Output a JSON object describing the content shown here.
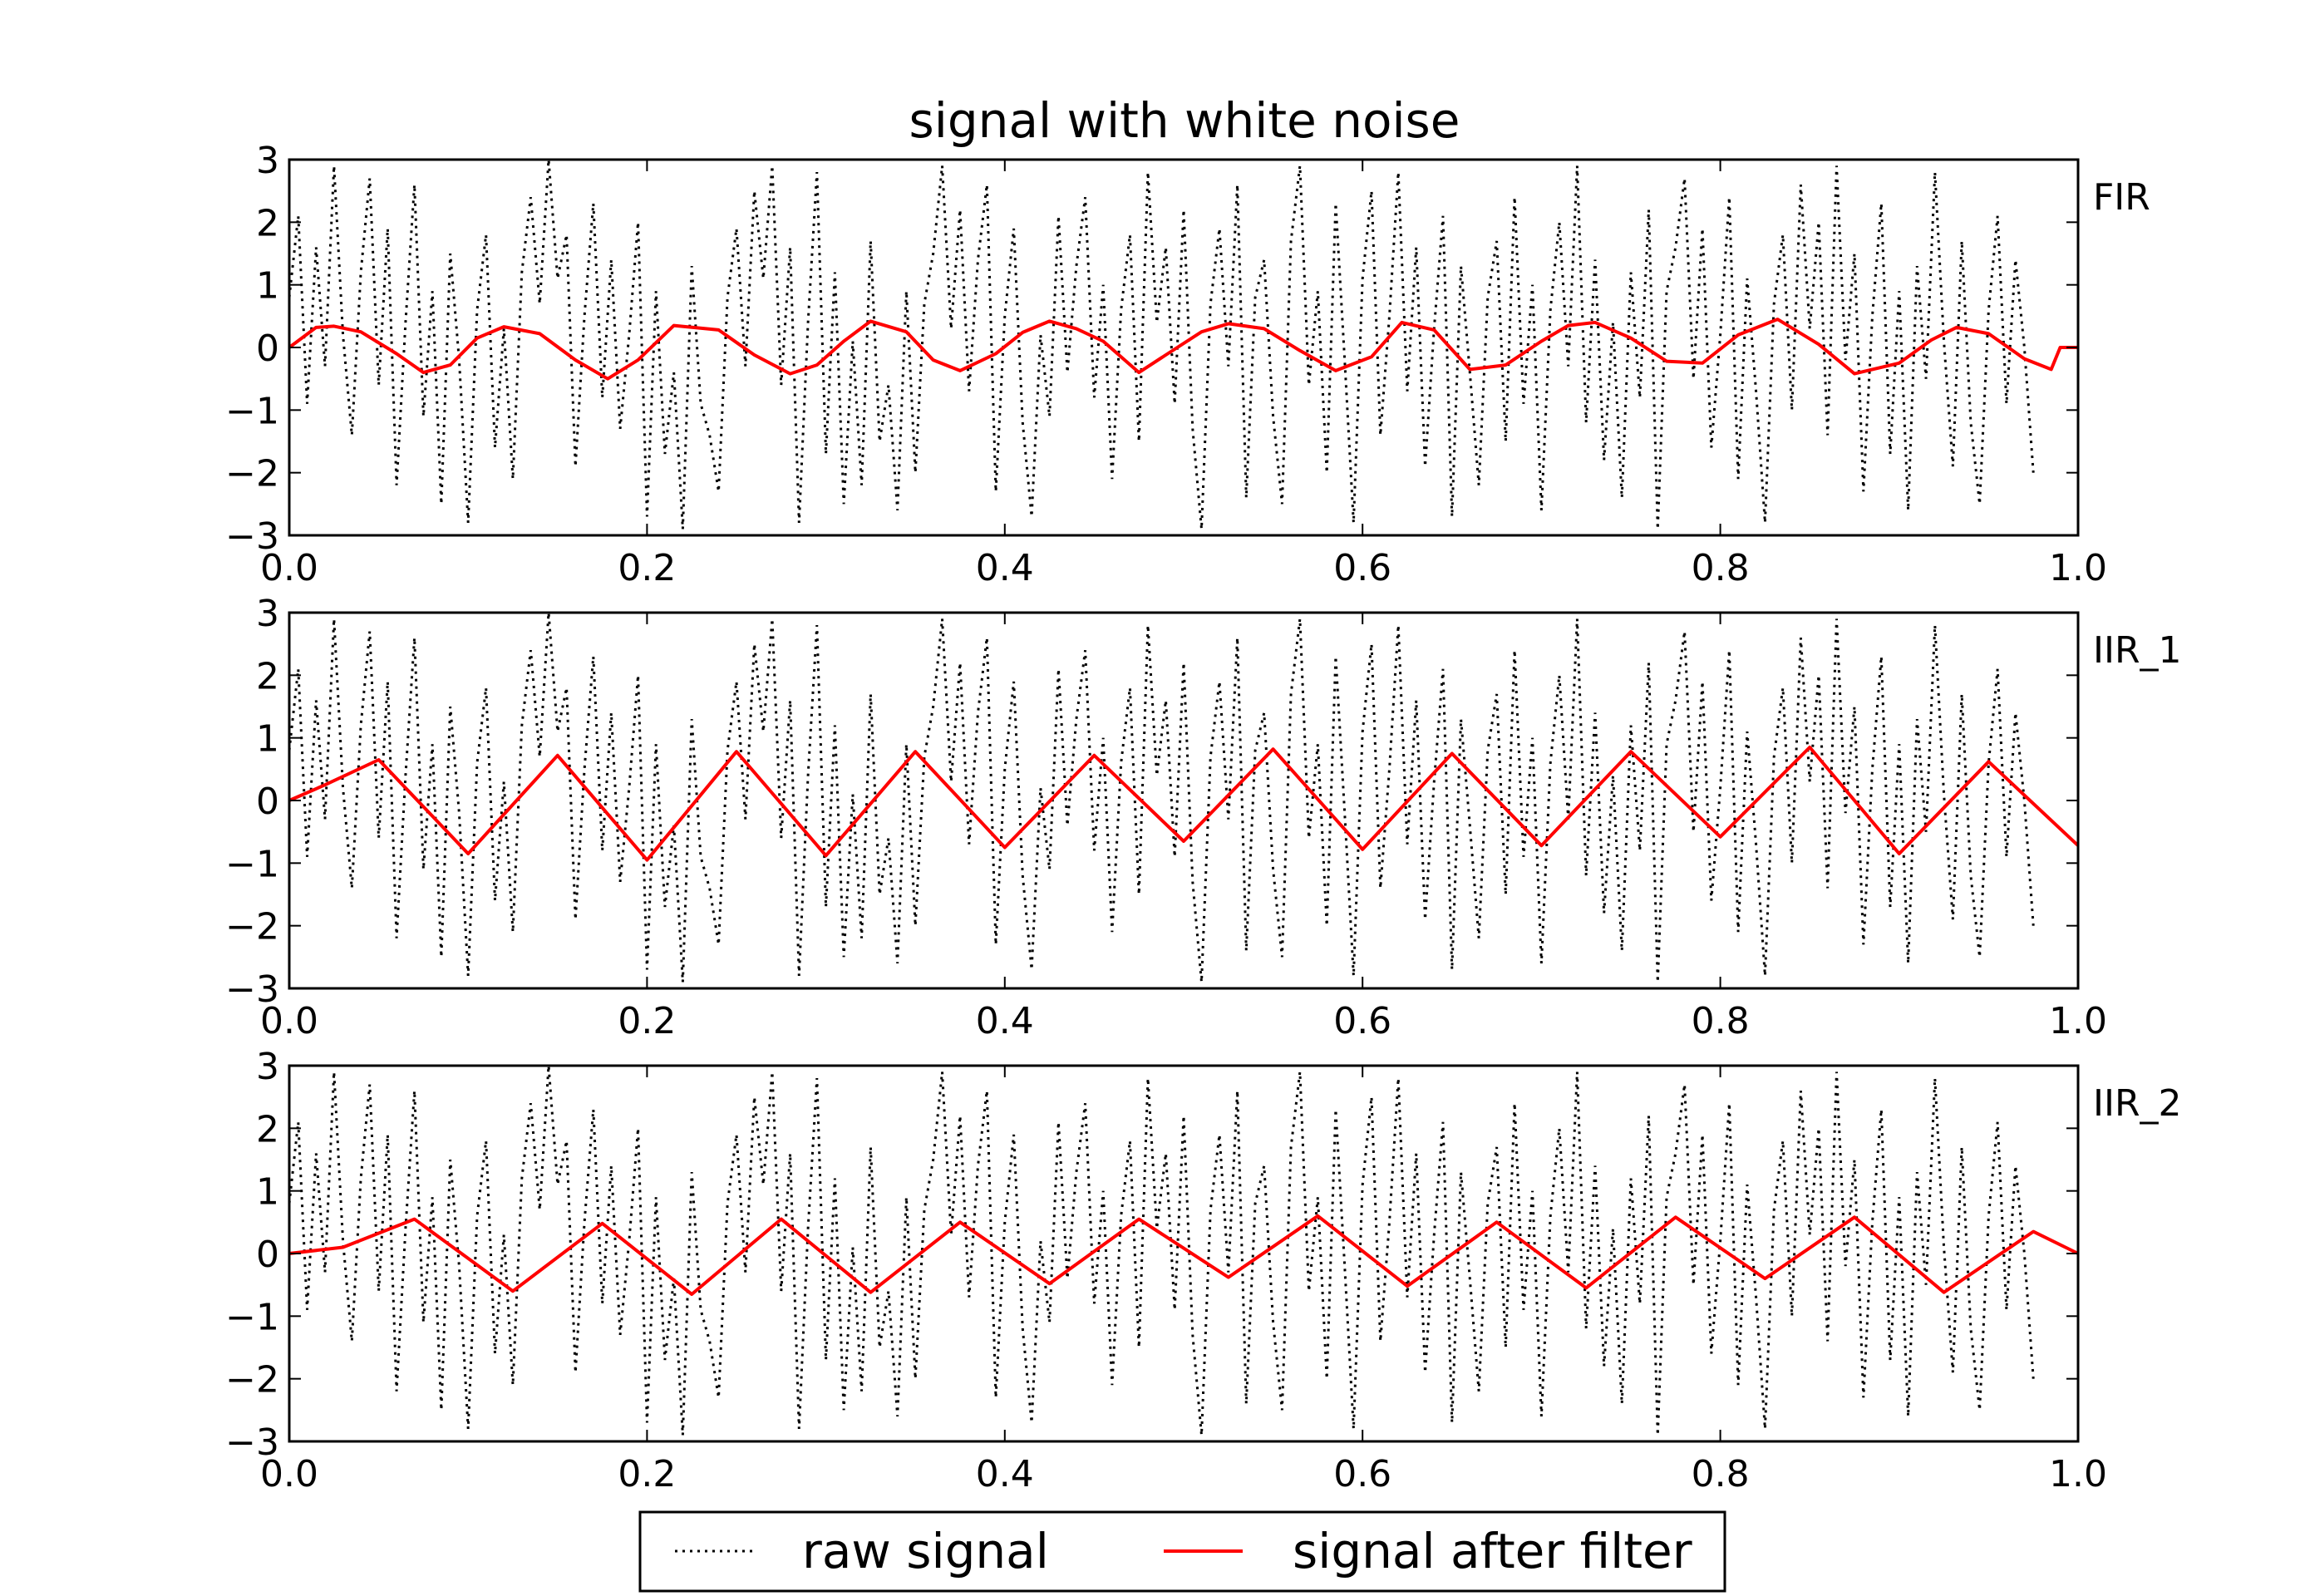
{
  "chart_data": {
    "type": "line",
    "title": "signal with white noise",
    "xlim": [
      0.0,
      1.0
    ],
    "ylim": [
      -3,
      3
    ],
    "x_ticks": [
      "0.0",
      "0.2",
      "0.4",
      "0.6",
      "0.8",
      "1.0"
    ],
    "y_ticks": [
      "3",
      "2",
      "1",
      "0",
      "−1",
      "−2",
      "−3"
    ],
    "grid": false,
    "legend_position": "bottom-center",
    "legend": {
      "raw_label": "raw signal",
      "filtered_label": "signal after filter"
    },
    "colors": {
      "raw": "#000000",
      "filtered": "#ff0000"
    },
    "raw_signal": {
      "x_step": 0.005,
      "values": [
        0.8,
        2.1,
        -0.9,
        1.6,
        -0.3,
        2.9,
        0.2,
        -1.4,
        1.2,
        2.7,
        -0.6,
        1.9,
        -2.2,
        0.4,
        2.6,
        -1.1,
        0.9,
        -2.5,
        1.5,
        -0.2,
        -2.8,
        0.6,
        1.8,
        -1.6,
        0.3,
        -2.1,
        1.2,
        2.4,
        0.7,
        3.0,
        1.1,
        1.8,
        -1.9,
        0.5,
        2.3,
        -0.8,
        1.4,
        -1.3,
        0.2,
        2.0,
        -2.7,
        0.9,
        -1.7,
        -0.4,
        -2.9,
        1.3,
        -0.9,
        -1.4,
        -2.3,
        0.8,
        1.9,
        -0.3,
        2.5,
        1.1,
        2.9,
        -0.6,
        1.6,
        -2.8,
        0.4,
        2.8,
        -1.7,
        1.2,
        -2.5,
        0.1,
        -2.2,
        1.7,
        -1.5,
        -0.6,
        -2.6,
        0.9,
        -2.0,
        0.7,
        1.5,
        2.9,
        0.3,
        2.2,
        -0.7,
        1.4,
        2.6,
        -2.3,
        0.5,
        1.9,
        -1.2,
        -2.7,
        0.2,
        -1.1,
        2.1,
        -0.4,
        1.3,
        2.4,
        -0.8,
        1.0,
        -2.1,
        0.6,
        1.8,
        -1.5,
        2.8,
        0.4,
        1.6,
        -0.9,
        2.2,
        -1.3,
        -2.9,
        0.7,
        1.9,
        -0.3,
        2.6,
        -2.4,
        0.8,
        1.4,
        -1.1,
        -2.5,
        1.7,
        2.9,
        -0.6,
        0.9,
        -2.0,
        2.3,
        -0.2,
        -2.8,
        1.1,
        2.5,
        -1.4,
        0.5,
        2.8,
        -0.7,
        1.6,
        -1.9,
        0.3,
        2.1,
        -2.7,
        1.3,
        -0.4,
        -2.2,
        0.8,
        1.7,
        -1.5,
        2.4,
        -0.9,
        1.0,
        -2.6,
        0.6,
        2.0,
        -0.3,
        2.9,
        -1.2,
        1.4,
        -1.8,
        0.4,
        -2.4,
        1.2,
        -0.8,
        2.2,
        -2.9,
        0.9,
        1.6,
        2.7,
        -0.5,
        1.9,
        -1.6,
        0.2,
        2.4,
        -2.1,
        1.1,
        -0.7,
        -2.8,
        0.7,
        1.8,
        -1.0,
        2.6,
        0.3,
        2.0,
        -1.4,
        2.9,
        -0.2,
        1.5,
        -2.3,
        0.5,
        2.3,
        -1.7,
        0.9,
        -2.6,
        1.3,
        -0.5,
        2.8,
        0.1,
        -1.9,
        1.7,
        -1.2,
        -2.5,
        0.6,
        2.1,
        -0.9,
        1.4,
        0.0,
        -2.0
      ]
    },
    "panels": [
      {
        "name": "FIR",
        "filtered": {
          "x": [
            0,
            0.015,
            0.025,
            0.04,
            0.06,
            0.075,
            0.09,
            0.105,
            0.12,
            0.14,
            0.16,
            0.178,
            0.195,
            0.215,
            0.24,
            0.26,
            0.28,
            0.295,
            0.31,
            0.325,
            0.345,
            0.36,
            0.375,
            0.395,
            0.41,
            0.425,
            0.44,
            0.455,
            0.475,
            0.49,
            0.51,
            0.525,
            0.545,
            0.565,
            0.585,
            0.605,
            0.622,
            0.64,
            0.66,
            0.68,
            0.7,
            0.715,
            0.73,
            0.75,
            0.77,
            0.79,
            0.81,
            0.832,
            0.855,
            0.875,
            0.9,
            0.918,
            0.932,
            0.95,
            0.97,
            0.985,
            0.99,
            1.0
          ],
          "y": [
            0,
            0.32,
            0.34,
            0.25,
            -0.1,
            -0.4,
            -0.28,
            0.15,
            0.33,
            0.22,
            -0.2,
            -0.5,
            -0.2,
            0.35,
            0.28,
            -0.12,
            -0.42,
            -0.28,
            0.1,
            0.42,
            0.25,
            -0.2,
            -0.37,
            -0.1,
            0.24,
            0.42,
            0.3,
            0.1,
            -0.4,
            -0.12,
            0.25,
            0.38,
            0.3,
            -0.05,
            -0.37,
            -0.15,
            0.4,
            0.28,
            -0.35,
            -0.28,
            0.1,
            0.35,
            0.4,
            0.15,
            -0.22,
            -0.25,
            0.2,
            0.45,
            0.05,
            -0.42,
            -0.25,
            0.12,
            0.32,
            0.22,
            -0.18,
            -0.35,
            0.0,
            0.0
          ]
        }
      },
      {
        "name": "IIR_1",
        "filtered": {
          "x": [
            0,
            0.02,
            0.05,
            0.1,
            0.15,
            0.2,
            0.25,
            0.3,
            0.35,
            0.4,
            0.45,
            0.5,
            0.55,
            0.6,
            0.65,
            0.7,
            0.75,
            0.8,
            0.85,
            0.9,
            0.95,
            1.0
          ],
          "y": [
            0,
            0.25,
            0.65,
            -0.85,
            0.72,
            -0.95,
            0.78,
            -0.88,
            0.78,
            -0.75,
            0.72,
            -0.65,
            0.82,
            -0.78,
            0.75,
            -0.72,
            0.78,
            -0.58,
            0.85,
            -0.85,
            0.62,
            -0.72
          ]
        }
      },
      {
        "name": "IIR_2",
        "filtered": {
          "x": [
            0,
            0.03,
            0.07,
            0.125,
            0.175,
            0.225,
            0.275,
            0.325,
            0.375,
            0.425,
            0.475,
            0.525,
            0.575,
            0.625,
            0.675,
            0.725,
            0.775,
            0.825,
            0.875,
            0.925,
            0.975,
            1.0
          ],
          "y": [
            0,
            0.1,
            0.55,
            -0.6,
            0.48,
            -0.65,
            0.55,
            -0.62,
            0.5,
            -0.48,
            0.55,
            -0.38,
            0.6,
            -0.52,
            0.5,
            -0.55,
            0.58,
            -0.4,
            0.58,
            -0.62,
            0.35,
            0.0
          ]
        }
      }
    ]
  }
}
